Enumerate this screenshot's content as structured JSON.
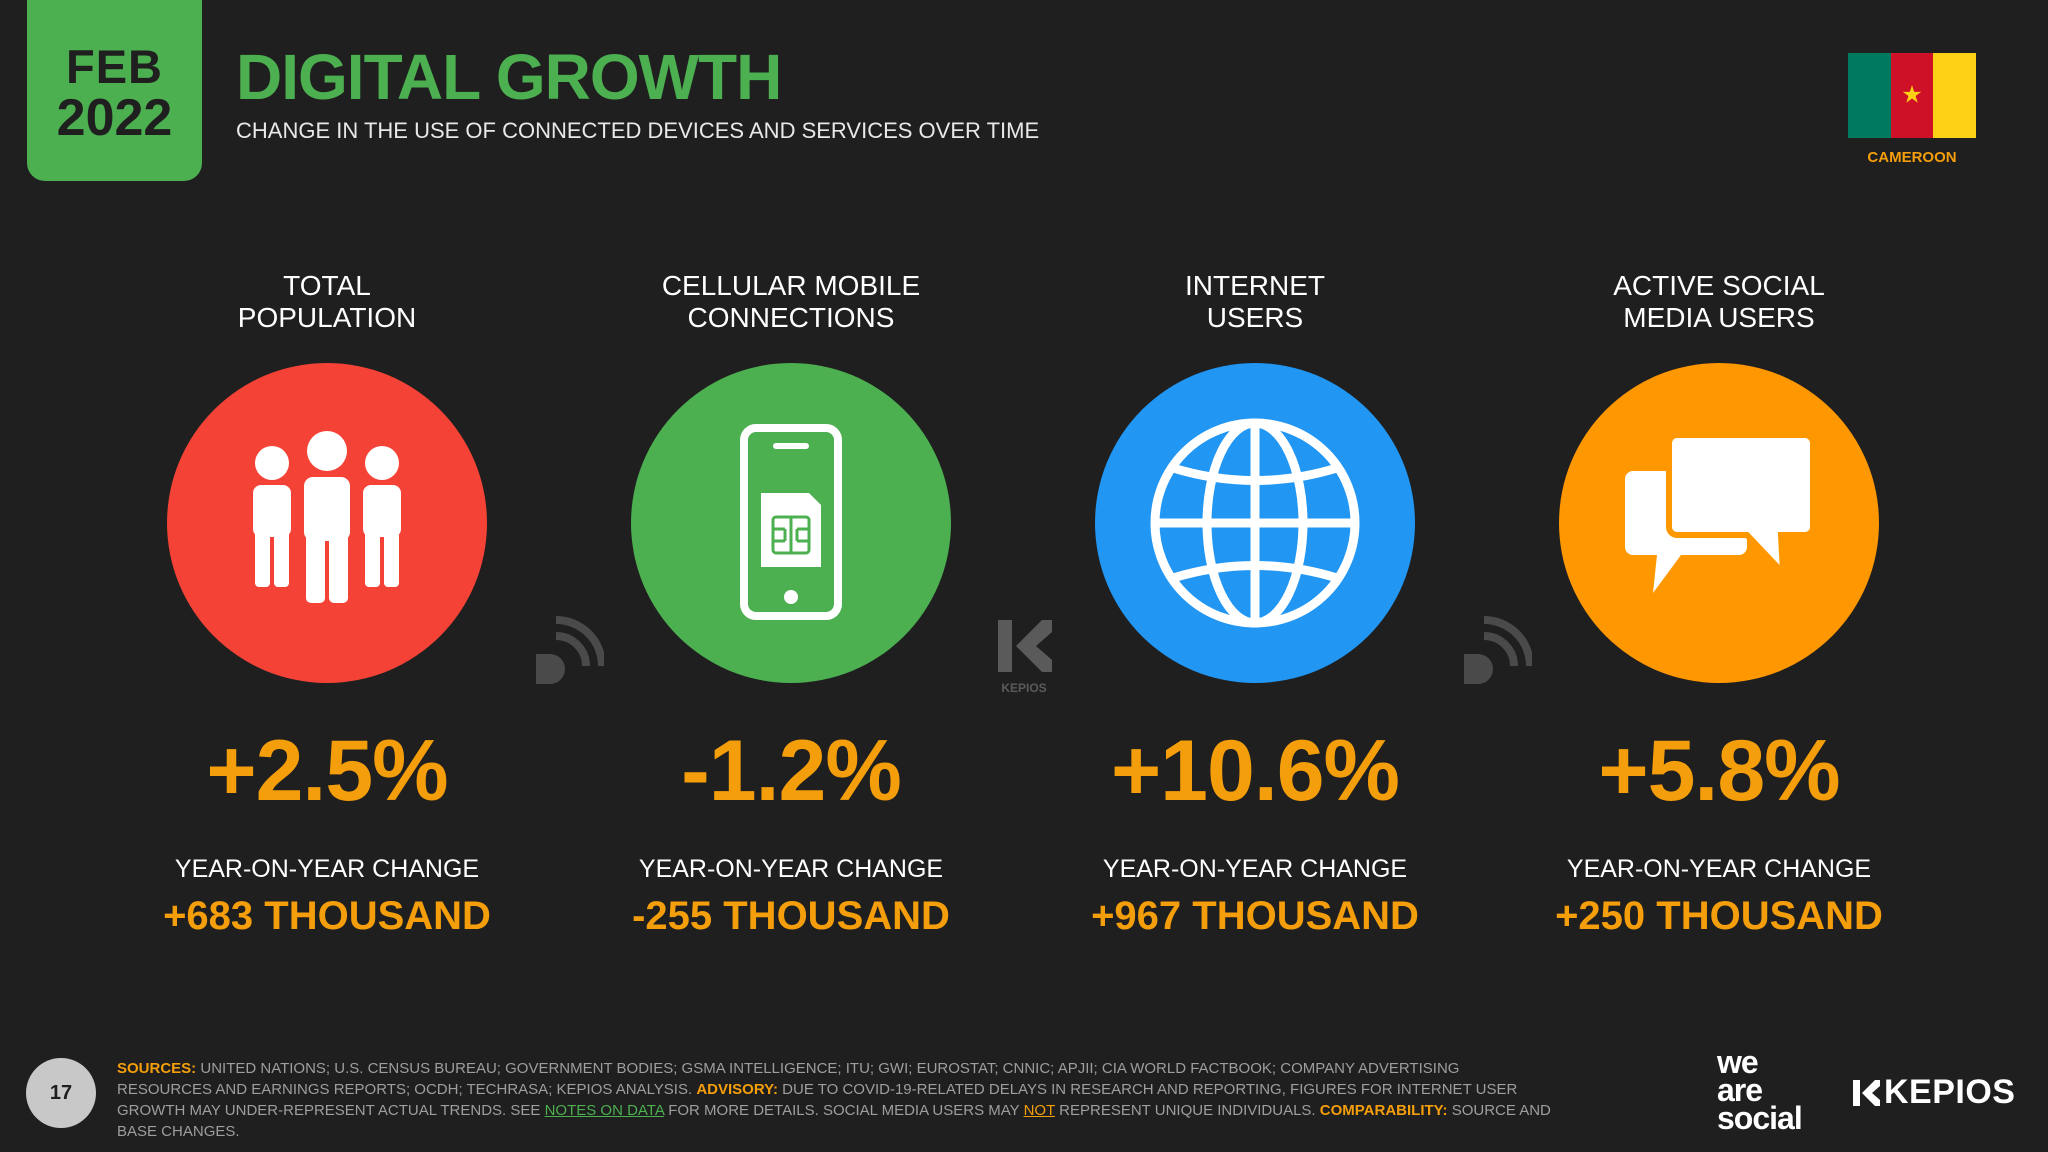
{
  "header": {
    "month": "FEB",
    "year": "2022",
    "title": "DIGITAL GROWTH",
    "subtitle": "CHANGE IN THE USE OF CONNECTED DEVICES AND SERVICES OVER TIME"
  },
  "country": {
    "name": "CAMEROON",
    "flag_colors": [
      "#007a5e",
      "#ce1126",
      "#fcd116"
    ]
  },
  "stats": [
    {
      "label_line1": "TOTAL",
      "label_line2": "POPULATION",
      "icon": "people-icon",
      "color": "#f44336",
      "pct_change": "+2.5%",
      "yoy_label": "YEAR-ON-YEAR CHANGE",
      "abs_change": "+683 THOUSAND"
    },
    {
      "label_line1": "CELLULAR MOBILE",
      "label_line2": "CONNECTIONS",
      "icon": "mobile-phone-icon",
      "color": "#4caf50",
      "pct_change": "-1.2%",
      "yoy_label": "YEAR-ON-YEAR CHANGE",
      "abs_change": "-255 THOUSAND"
    },
    {
      "label_line1": "INTERNET",
      "label_line2": "USERS",
      "icon": "globe-icon",
      "color": "#2196f3",
      "pct_change": "+10.6%",
      "yoy_label": "YEAR-ON-YEAR CHANGE",
      "abs_change": "+967 THOUSAND"
    },
    {
      "label_line1": "ACTIVE SOCIAL",
      "label_line2": "MEDIA USERS",
      "icon": "speech-bubbles-icon",
      "color": "#ff9800",
      "pct_change": "+5.8%",
      "yoy_label": "YEAR-ON-YEAR CHANGE",
      "abs_change": "+250 THOUSAND"
    }
  ],
  "watermark_label": "KEPIOS",
  "footer": {
    "page_number": "17",
    "sources_label": "SOURCES:",
    "sources_text": " UNITED NATIONS; U.S. CENSUS BUREAU; GOVERNMENT BODIES; GSMA INTELLIGENCE; ITU; GWI; EUROSTAT; CNNIC; APJII; CIA WORLD FACTBOOK; COMPANY ADVERTISING RESOURCES AND EARNINGS REPORTS; OCDH; TECHRASA; KEPIOS ANALYSIS. ",
    "advisory_label": "ADVISORY:",
    "advisory_text": " DUE TO COVID-19-RELATED DELAYS IN RESEARCH AND REPORTING, FIGURES FOR INTERNET USER GROWTH MAY UNDER-REPRESENT ACTUAL TRENDS. SEE ",
    "notes_link": "NOTES ON DATA",
    "advisory_text2": " FOR MORE DETAILS. SOCIAL MEDIA USERS MAY ",
    "not_word": "NOT",
    "advisory_text3": " REPRESENT UNIQUE INDIVIDUALS. ",
    "comparability_label": "COMPARABILITY:",
    "comparability_text": " SOURCE AND BASE CHANGES.",
    "logo_was_line1": "we",
    "logo_was_line2": "are",
    "logo_was_line3": "social",
    "logo_kepios": "KEPIOS"
  }
}
